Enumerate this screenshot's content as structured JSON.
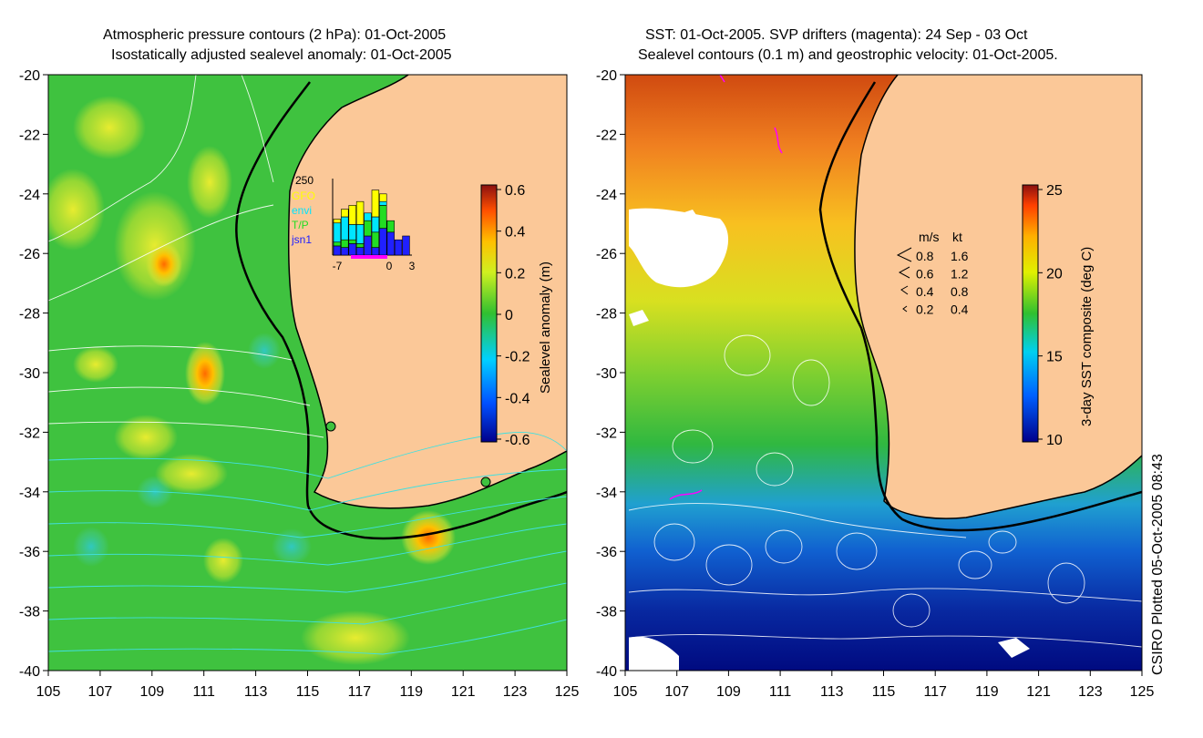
{
  "left_panel": {
    "title_line1": "Atmospheric pressure contours (2 hPa): 01-Oct-2005",
    "title_line2": "Isostatically adjusted sealevel anomaly: 01-Oct-2005",
    "colorbar": {
      "label": "Sealevel anomaly (m)",
      "ticks": [
        "0.6",
        "0.4",
        "0.2",
        "0",
        "-0.2",
        "-0.4",
        "-0.6"
      ]
    },
    "inset": {
      "top_label": "250",
      "legend": [
        {
          "label": "GFO",
          "color": "#ffff00"
        },
        {
          "label": "envi",
          "color": "#00e5ff"
        },
        {
          "label": "T/P",
          "color": "#22dd22"
        },
        {
          "label": "jsn1",
          "color": "#2020ff"
        }
      ],
      "x_ticks": [
        "-7",
        "0",
        "3"
      ],
      "bars": [
        {
          "GFO": 0.05,
          "envi": 0.25,
          "TP": 0.05,
          "jsn1": 0.12
        },
        {
          "GFO": 0.1,
          "envi": 0.3,
          "TP": 0.1,
          "jsn1": 0.1
        },
        {
          "GFO": 0.25,
          "envi": 0.2,
          "TP": 0.05,
          "jsn1": 0.15
        },
        {
          "GFO": 0.3,
          "envi": 0.25,
          "TP": 0.05,
          "jsn1": 0.1
        },
        {
          "GFO": 0.0,
          "envi": 0.1,
          "TP": 0.2,
          "jsn1": 0.25
        },
        {
          "GFO": 0.35,
          "envi": 0.2,
          "TP": 0.2,
          "jsn1": 0.1
        },
        {
          "GFO": 0.1,
          "envi": 0.05,
          "TP": 0.3,
          "jsn1": 0.35
        },
        {
          "GFO": 0.0,
          "envi": 0.0,
          "TP": 0.15,
          "jsn1": 0.3
        },
        {
          "GFO": 0.0,
          "envi": 0.0,
          "TP": 0.0,
          "jsn1": 0.2
        },
        {
          "GFO": 0.0,
          "envi": 0.0,
          "TP": 0.0,
          "jsn1": 0.25
        }
      ]
    }
  },
  "right_panel": {
    "title_line1": "SST: 01-Oct-2005. SVP drifters (magenta): 24 Sep - 03 Oct",
    "title_line2": "Sealevel contours (0.1 m) and geostrophic velocity: 01-Oct-2005.",
    "colorbar": {
      "label": "3-day SST composite (deg C)",
      "ticks": [
        "25",
        "20",
        "15",
        "10"
      ]
    },
    "velocity_legend": {
      "header_ms": "m/s",
      "header_kt": "kt",
      "rows": [
        {
          "ms": "0.8",
          "kt": "1.6"
        },
        {
          "ms": "0.6",
          "kt": "1.2"
        },
        {
          "ms": "0.4",
          "kt": "0.8"
        },
        {
          "ms": "0.2",
          "kt": "0.4"
        }
      ]
    }
  },
  "axes": {
    "y_ticks": [
      "-20",
      "-22",
      "-24",
      "-26",
      "-28",
      "-30",
      "-32",
      "-34",
      "-36",
      "-38",
      "-40"
    ],
    "x_ticks": [
      "105",
      "107",
      "109",
      "111",
      "113",
      "115",
      "117",
      "119",
      "121",
      "123",
      "125"
    ]
  },
  "footer_text": "CSIRO Plotted 05-Oct-2005 08:43",
  "colors": {
    "land": "#fbc898",
    "ocean_green": "#3fc23f",
    "coast": "#000000",
    "contour": "#ffffff",
    "cyan_contour": "#40e0e0",
    "drifter": "#ff00ff"
  }
}
